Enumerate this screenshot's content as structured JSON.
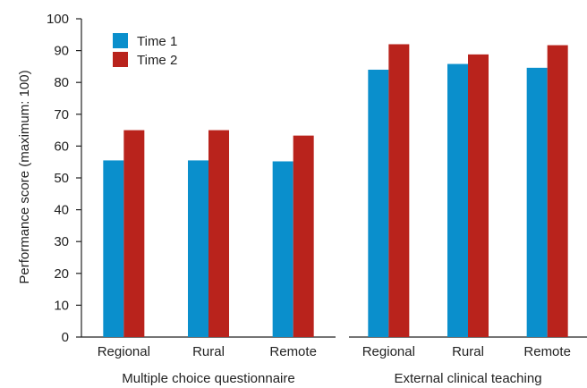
{
  "chart_data": {
    "type": "bar",
    "ylabel": "Performance score (maximum: 100)",
    "ylim": [
      0,
      100
    ],
    "yticks": [
      0,
      10,
      20,
      30,
      40,
      50,
      60,
      70,
      80,
      90,
      100
    ],
    "grid": false,
    "legend_position": "top-left",
    "groups": [
      {
        "label": "Multiple choice questionnaire",
        "categories": [
          "Regional",
          "Rural",
          "Remote"
        ]
      },
      {
        "label": "External clinical teaching",
        "categories": [
          "Regional",
          "Rural",
          "Remote"
        ]
      }
    ],
    "series": [
      {
        "name": "Time 1",
        "color": "#0a8fcc",
        "values": [
          [
            55.5,
            55.5,
            55.2
          ],
          [
            84.0,
            85.8,
            84.6
          ]
        ]
      },
      {
        "name": "Time 2",
        "color": "#b9231c",
        "values": [
          [
            65.0,
            65.0,
            63.3
          ],
          [
            92.0,
            88.8,
            91.7
          ]
        ]
      }
    ]
  }
}
